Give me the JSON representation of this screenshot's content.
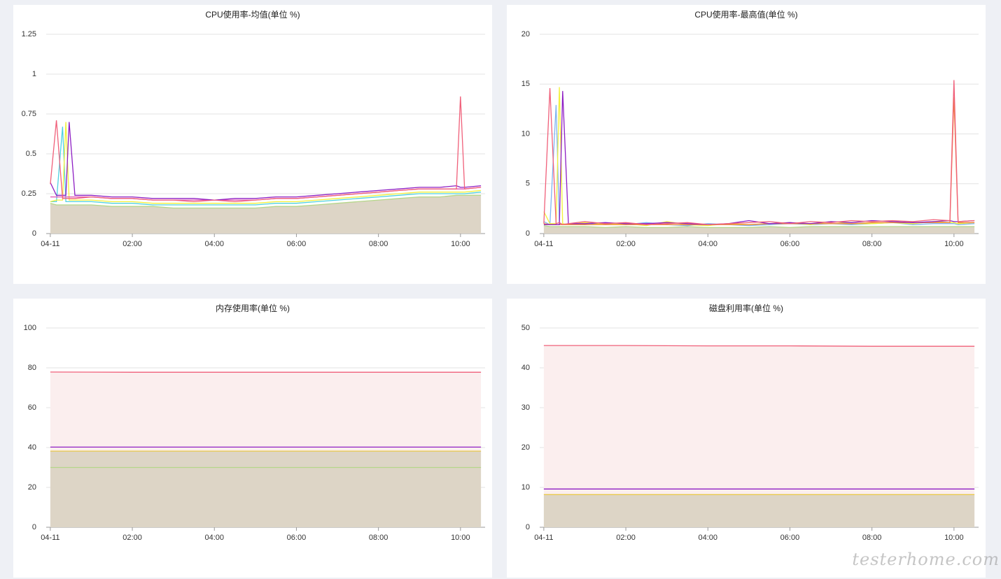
{
  "chart_data": [
    {
      "type": "line",
      "title": "CPU使用率-均值(单位 %)",
      "x": [
        0,
        0.15,
        0.3,
        0.38,
        0.46,
        0.6,
        1,
        1.5,
        2,
        2.5,
        3,
        3.5,
        4,
        4.5,
        5,
        5.5,
        6,
        6.5,
        7,
        7.5,
        8,
        8.5,
        9,
        9.5,
        9.9,
        10,
        10.1,
        10.5
      ],
      "xlim": [
        -0.1,
        10.6
      ],
      "xticks": [
        {
          "value": 0,
          "label": "04-11"
        },
        {
          "value": 2,
          "label": "02:00"
        },
        {
          "value": 4,
          "label": "04:00"
        },
        {
          "value": 6,
          "label": "06:00"
        },
        {
          "value": 8,
          "label": "08:00"
        },
        {
          "value": 10,
          "label": "10:00"
        }
      ],
      "ylim": [
        0,
        1.25
      ],
      "yticks": [
        0,
        0.25,
        0.5,
        0.75,
        1,
        1.25
      ],
      "grid": true,
      "series": [
        {
          "color": "#b5d68a",
          "fill": "#ddd5c6",
          "values": [
            0.19,
            0.18,
            0.18,
            0.18,
            0.18,
            0.18,
            0.18,
            0.17,
            0.17,
            0.17,
            0.16,
            0.16,
            0.16,
            0.16,
            0.16,
            0.17,
            0.17,
            0.18,
            0.19,
            0.2,
            0.21,
            0.22,
            0.23,
            0.23,
            0.24,
            0.24,
            0.24,
            0.24
          ]
        },
        {
          "color": "#4fd1e0",
          "values": [
            0.2,
            0.2,
            0.67,
            0.2,
            0.2,
            0.2,
            0.2,
            0.19,
            0.19,
            0.18,
            0.18,
            0.18,
            0.18,
            0.18,
            0.18,
            0.19,
            0.19,
            0.2,
            0.21,
            0.22,
            0.23,
            0.24,
            0.25,
            0.25,
            0.25,
            0.25,
            0.25,
            0.26
          ]
        },
        {
          "color": "#f2f03a",
          "values": [
            0.2,
            0.21,
            0.21,
            0.7,
            0.21,
            0.21,
            0.21,
            0.2,
            0.2,
            0.19,
            0.19,
            0.19,
            0.19,
            0.19,
            0.19,
            0.2,
            0.2,
            0.21,
            0.22,
            0.23,
            0.24,
            0.25,
            0.26,
            0.26,
            0.26,
            0.26,
            0.26,
            0.27
          ]
        },
        {
          "color": "#e04fb0",
          "values": [
            0.23,
            0.23,
            0.23,
            0.23,
            0.23,
            0.23,
            0.23,
            0.22,
            0.22,
            0.21,
            0.21,
            0.21,
            0.21,
            0.21,
            0.21,
            0.22,
            0.22,
            0.23,
            0.24,
            0.25,
            0.26,
            0.27,
            0.28,
            0.28,
            0.28,
            0.28,
            0.28,
            0.29
          ]
        },
        {
          "color": "#8e1fc4",
          "values": [
            0.32,
            0.24,
            0.24,
            0.24,
            0.7,
            0.24,
            0.24,
            0.23,
            0.23,
            0.22,
            0.22,
            0.22,
            0.21,
            0.22,
            0.22,
            0.23,
            0.23,
            0.24,
            0.25,
            0.26,
            0.27,
            0.28,
            0.29,
            0.29,
            0.3,
            0.29,
            0.29,
            0.3
          ]
        },
        {
          "color": "#f0607a",
          "values": [
            0.31,
            0.71,
            0.22,
            0.22,
            0.22,
            0.22,
            0.23,
            0.22,
            0.22,
            0.21,
            0.21,
            0.2,
            0.21,
            0.2,
            0.21,
            0.22,
            0.22,
            0.23,
            0.24,
            0.25,
            0.26,
            0.27,
            0.28,
            0.28,
            0.28,
            0.86,
            0.28,
            0.29
          ]
        }
      ]
    },
    {
      "type": "line",
      "title": "CPU使用率-最高值(单位 %)",
      "x": [
        0,
        0.15,
        0.3,
        0.38,
        0.46,
        0.6,
        1,
        1.5,
        2,
        2.5,
        3,
        3.5,
        4,
        4.5,
        5,
        5.5,
        6,
        6.5,
        7,
        7.5,
        8,
        8.5,
        9,
        9.5,
        9.9,
        10,
        10.1,
        10.5
      ],
      "xlim": [
        -0.1,
        10.6
      ],
      "xticks": [
        {
          "value": 0,
          "label": "04-11"
        },
        {
          "value": 2,
          "label": "02:00"
        },
        {
          "value": 4,
          "label": "04:00"
        },
        {
          "value": 6,
          "label": "06:00"
        },
        {
          "value": 8,
          "label": "08:00"
        },
        {
          "value": 10,
          "label": "10:00"
        }
      ],
      "ylim": [
        0,
        20
      ],
      "yticks": [
        0,
        5,
        10,
        15,
        20
      ],
      "grid": true,
      "series": [
        {
          "color": "#b5d68a",
          "fill": "#ddd5c6",
          "values": [
            0.8,
            0.7,
            0.7,
            0.7,
            0.7,
            0.7,
            0.7,
            0.6,
            0.7,
            0.6,
            0.6,
            0.7,
            0.6,
            0.6,
            0.6,
            0.7,
            0.6,
            0.7,
            0.7,
            0.7,
            0.7,
            0.7,
            0.7,
            0.7,
            0.7,
            0.7,
            0.7,
            0.7
          ]
        },
        {
          "color": "#7fb4f0",
          "values": [
            1.2,
            0.9,
            12.9,
            1.0,
            0.9,
            1.0,
            0.9,
            1.0,
            0.9,
            1.1,
            0.9,
            0.8,
            1.0,
            0.9,
            0.8,
            0.9,
            1.0,
            0.9,
            1.0,
            0.9,
            1.0,
            1.1,
            0.9,
            1.0,
            1.0,
            1.0,
            0.9,
            1.0
          ]
        },
        {
          "color": "#f2f03a",
          "values": [
            2.2,
            1.0,
            1.0,
            14.7,
            1.0,
            0.9,
            1.1,
            0.9,
            1.0,
            0.8,
            1.2,
            0.9,
            0.8,
            1.0,
            0.9,
            1.0,
            1.1,
            0.9,
            1.2,
            1.0,
            1.0,
            1.1,
            1.0,
            1.2,
            1.1,
            1.1,
            1.0,
            1.1
          ]
        },
        {
          "color": "#f08a3c",
          "values": [
            1.0,
            0.9,
            0.9,
            0.9,
            0.9,
            0.9,
            0.9,
            0.9,
            0.9,
            0.9,
            0.9,
            0.9,
            0.9,
            0.9,
            0.9,
            1.0,
            1.0,
            1.0,
            1.0,
            1.0,
            1.1,
            1.1,
            1.1,
            1.1,
            1.1,
            13.7,
            1.1,
            1.1
          ]
        },
        {
          "color": "#8e1fc4",
          "values": [
            0.9,
            0.9,
            0.9,
            0.9,
            14.3,
            1.0,
            1.0,
            1.1,
            1.0,
            1.0,
            1.1,
            1.0,
            0.9,
            1.0,
            1.3,
            1.0,
            1.1,
            1.0,
            1.2,
            1.1,
            1.3,
            1.2,
            1.1,
            1.2,
            1.3,
            1.2,
            1.2,
            1.3
          ]
        },
        {
          "color": "#f0607a",
          "values": [
            1.0,
            14.6,
            1.0,
            1.1,
            0.9,
            1.0,
            1.2,
            1.0,
            1.1,
            0.9,
            1.0,
            1.1,
            0.9,
            1.0,
            1.1,
            1.2,
            1.0,
            1.2,
            1.1,
            1.3,
            1.2,
            1.3,
            1.2,
            1.4,
            1.3,
            15.4,
            1.2,
            1.3
          ]
        }
      ]
    },
    {
      "type": "line",
      "title": "内存使用率(单位 %)",
      "x": [
        0,
        2,
        4,
        6,
        8,
        10.5
      ],
      "xlim": [
        -0.1,
        10.6
      ],
      "xticks": [
        {
          "value": 0,
          "label": "04-11"
        },
        {
          "value": 2,
          "label": "02:00"
        },
        {
          "value": 4,
          "label": "04:00"
        },
        {
          "value": 6,
          "label": "06:00"
        },
        {
          "value": 8,
          "label": "08:00"
        },
        {
          "value": 10,
          "label": "10:00"
        }
      ],
      "ylim": [
        0,
        100
      ],
      "yticks": [
        0,
        20,
        40,
        60,
        80,
        100
      ],
      "grid": true,
      "series": [
        {
          "color": "#f0607a",
          "fill": "#fbeeee",
          "values": [
            77.9,
            77.8,
            77.8,
            77.8,
            77.8,
            77.8
          ]
        },
        {
          "color": "#8e1fc4",
          "values": [
            40.2,
            40.2,
            40.2,
            40.2,
            40.2,
            40.2
          ]
        },
        {
          "color": "#e8c84a",
          "fill": "#ddd5c6",
          "values": [
            38.2,
            38.2,
            38.2,
            38.2,
            38.2,
            38.2
          ]
        },
        {
          "color": "#b5d68a",
          "values": [
            30,
            30,
            30,
            30,
            30,
            30
          ]
        }
      ]
    },
    {
      "type": "line",
      "title": "磁盘利用率(单位 %)",
      "x": [
        0,
        2,
        4,
        6,
        8,
        10.5
      ],
      "xlim": [
        -0.1,
        10.6
      ],
      "xticks": [
        {
          "value": 0,
          "label": "04-11"
        },
        {
          "value": 2,
          "label": "02:00"
        },
        {
          "value": 4,
          "label": "04:00"
        },
        {
          "value": 6,
          "label": "06:00"
        },
        {
          "value": 8,
          "label": "08:00"
        },
        {
          "value": 10,
          "label": "10:00"
        }
      ],
      "ylim": [
        0,
        50
      ],
      "yticks": [
        0,
        10,
        20,
        30,
        40,
        50
      ],
      "grid": true,
      "series": [
        {
          "color": "#f0607a",
          "fill": "#fbeeee",
          "values": [
            45.6,
            45.6,
            45.5,
            45.5,
            45.4,
            45.4
          ]
        },
        {
          "color": "#8e1fc4",
          "values": [
            9.6,
            9.6,
            9.6,
            9.6,
            9.6,
            9.6
          ]
        },
        {
          "color": "#e8c84a",
          "fill": "#ddd5c6",
          "values": [
            8.2,
            8.2,
            8.2,
            8.2,
            8.2,
            8.2
          ]
        }
      ]
    }
  ],
  "watermark": "testerhome.com"
}
